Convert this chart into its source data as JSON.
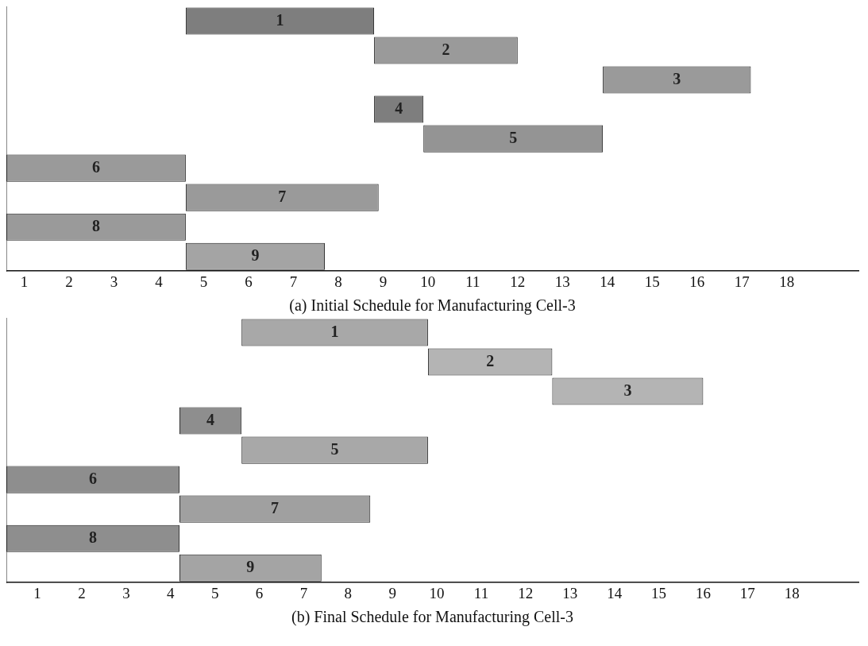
{
  "chart_data": [
    {
      "type": "bar",
      "orientation": "horizontal",
      "title": "(a) Initial Schedule for Manufacturing Cell-3",
      "categories": [
        "1",
        "2",
        "3",
        "4",
        "5",
        "6",
        "7",
        "8",
        "9"
      ],
      "base": [
        4.6,
        8.8,
        13.9,
        8.8,
        9.9,
        0.6,
        4.6,
        0.6,
        4.6
      ],
      "values": [
        4.2,
        3.2,
        3.3,
        1.1,
        4.0,
        4.0,
        4.3,
        4.0,
        3.1
      ],
      "colors": [
        "#7e7e7e",
        "#9a9a9a",
        "#9a9a9a",
        "#7e7e7e",
        "#949494",
        "#9a9a9a",
        "#9a9a9a",
        "#9a9a9a",
        "#a4a4a4"
      ],
      "xlim": [
        0.6,
        19.6
      ],
      "xticks": [
        1,
        2,
        3,
        4,
        5,
        6,
        7,
        8,
        9,
        10,
        11,
        12,
        13,
        14,
        15,
        16,
        17,
        18
      ],
      "grid": false,
      "legend": false
    },
    {
      "type": "bar",
      "orientation": "horizontal",
      "title": "(b) Final Schedule for Manufacturing Cell-3",
      "categories": [
        "1",
        "2",
        "3",
        "4",
        "5",
        "6",
        "7",
        "8",
        "9"
      ],
      "base": [
        5.6,
        9.8,
        12.6,
        4.2,
        5.6,
        0.3,
        4.2,
        0.3,
        4.2
      ],
      "values": [
        4.2,
        2.8,
        3.4,
        1.4,
        4.2,
        3.9,
        4.3,
        3.9,
        3.2
      ],
      "colors": [
        "#a8a8a8",
        "#b4b4b4",
        "#b4b4b4",
        "#8e8e8e",
        "#a8a8a8",
        "#8e8e8e",
        "#a0a0a0",
        "#8e8e8e",
        "#a4a4a4"
      ],
      "xlim": [
        0.3,
        19.5
      ],
      "xticks": [
        1,
        2,
        3,
        4,
        5,
        6,
        7,
        8,
        9,
        10,
        11,
        12,
        13,
        14,
        15,
        16,
        17,
        18
      ],
      "grid": false,
      "legend": false
    }
  ]
}
